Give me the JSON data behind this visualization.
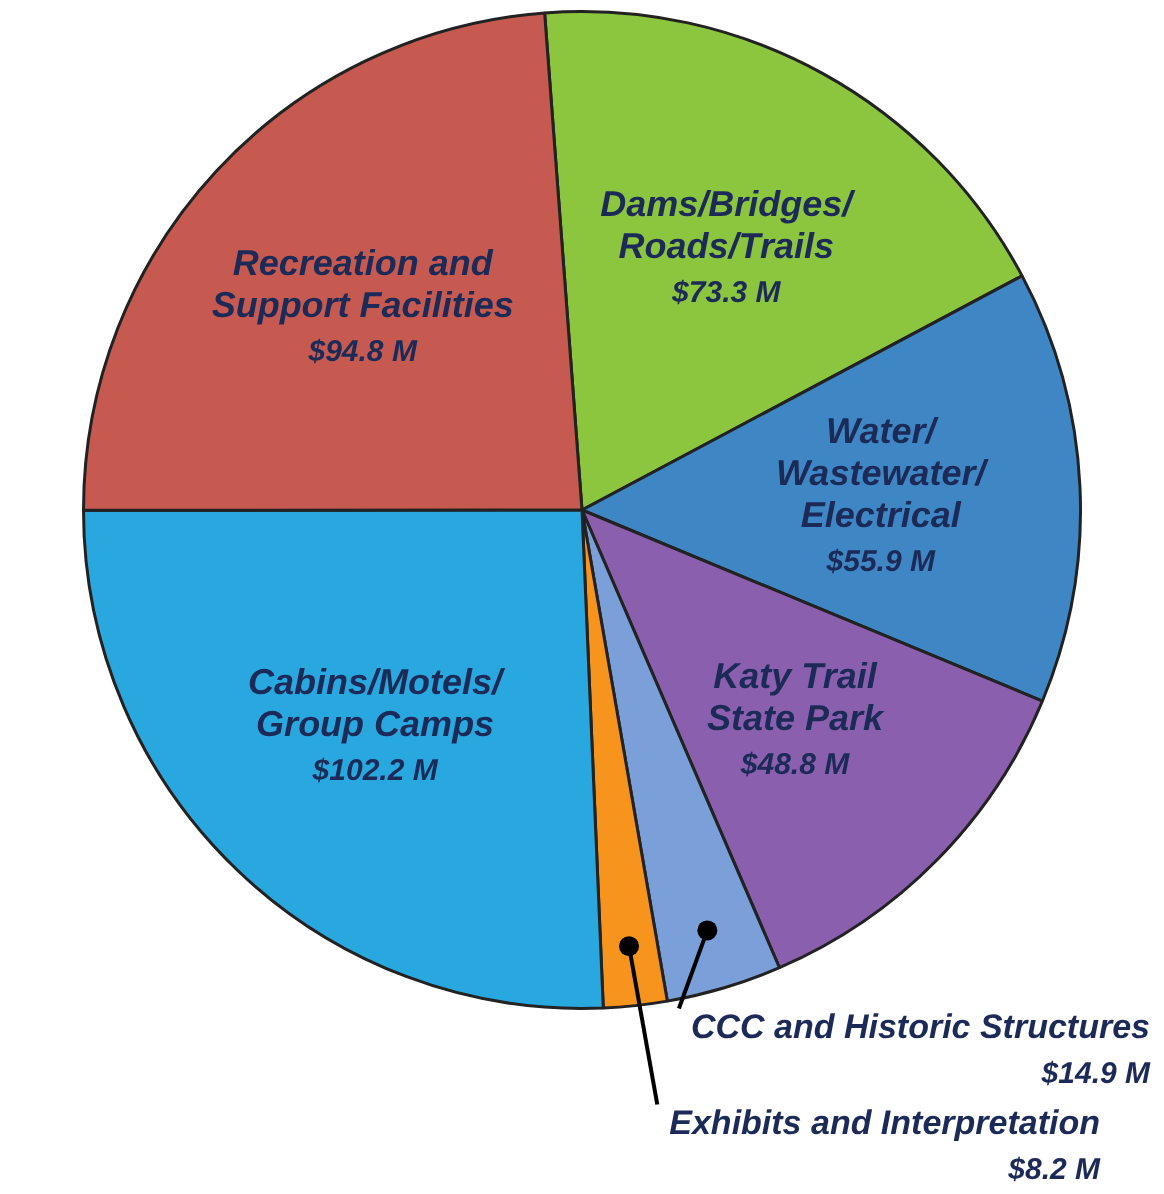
{
  "chart_data": {
    "type": "pie",
    "categories": [
      "Dams/Bridges/Roads/Trails",
      "Water/Wastewater/Electrical",
      "Katy Trail State Park",
      "CCC and Historic Structures",
      "Exhibits and Interpretation",
      "Cabins/Motels/Group Camps",
      "Recreation and Support Facilities"
    ],
    "values": [
      73.3,
      55.9,
      48.8,
      14.9,
      8.2,
      102.2,
      94.8
    ],
    "colors": [
      "#8cc63f",
      "#3f87c4",
      "#8a5fad",
      "#7b9fd9",
      "#f7941d",
      "#29a8e0",
      "#c65a50"
    ],
    "value_labels": [
      "$73.3 M",
      "$55.9 M",
      "$48.8 M",
      "$14.9 M",
      "$8.2 M",
      "$102.2 M",
      "$94.8 M"
    ]
  }
}
